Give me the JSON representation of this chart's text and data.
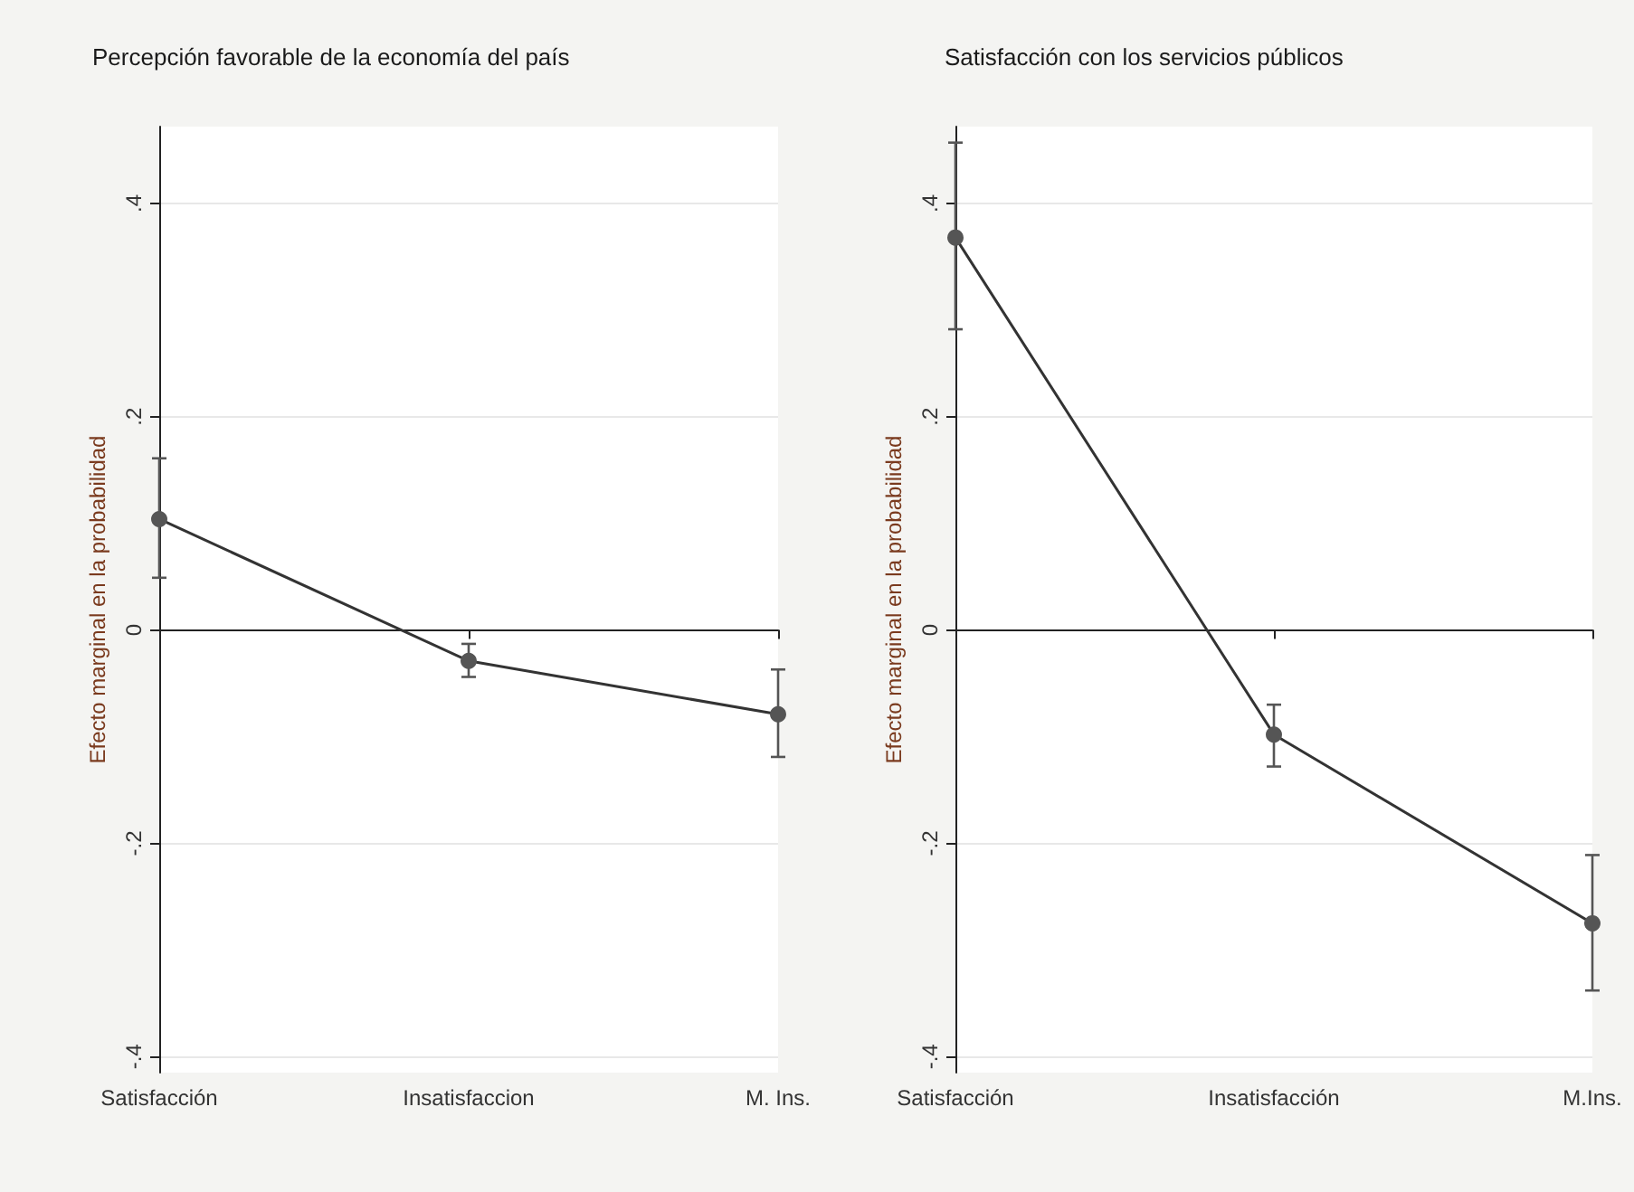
{
  "chart_data": [
    {
      "type": "line",
      "title": "Percepción favorable de la economía del país",
      "ylabel": "Efecto marginal en la probabilidad",
      "categories": [
        "Satisfacción",
        "Insatisfaccion",
        "M. Ins."
      ],
      "series": [
        {
          "color": "#555555",
          "values": [
            0.104,
            -0.029,
            -0.079
          ],
          "errors": [
            [
              0.049,
              0.161
            ],
            [
              -0.044,
              -0.013
            ],
            [
              -0.119,
              -0.037
            ]
          ]
        }
      ],
      "ylim": [
        -0.415,
        0.472
      ],
      "yticks": [
        {
          "value": -0.4,
          "label": "-.4"
        },
        {
          "value": -0.2,
          "label": "-.2"
        },
        0,
        {
          "value": 0.2,
          "label": ".2"
        },
        {
          "value": 0.4,
          "label": ".4"
        }
      ],
      "grid": "y",
      "marker": "circle",
      "line_style": "solid"
    },
    {
      "type": "line",
      "title": "Satisfacción con los servicios públicos",
      "ylabel": "Efecto marginal en la probabilidad",
      "categories": [
        "Satisfacción",
        "Insatisfacción",
        "M.Ins."
      ],
      "series": [
        {
          "color": "#555555",
          "values": [
            0.368,
            -0.098,
            -0.275
          ],
          "errors": [
            [
              0.282,
              0.457
            ],
            [
              -0.128,
              -0.07
            ],
            [
              -0.338,
              -0.211
            ]
          ]
        }
      ],
      "ylim": [
        -0.415,
        0.472
      ],
      "yticks": [
        {
          "value": -0.4,
          "label": "-.4"
        },
        {
          "value": -0.2,
          "label": "-.2"
        },
        0,
        {
          "value": 0.2,
          "label": ".2"
        },
        {
          "value": 0.4,
          "label": ".4"
        }
      ],
      "grid": "y",
      "marker": "circle",
      "line_style": "solid"
    }
  ]
}
